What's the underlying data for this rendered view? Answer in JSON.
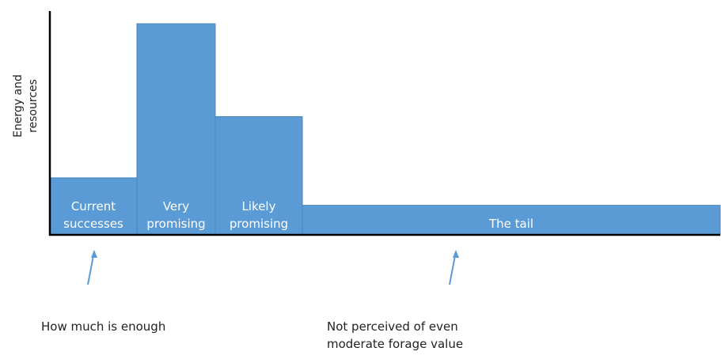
{
  "colors": {
    "bar_fill": "#5B9BD5",
    "bar_edge": "#4A85BC",
    "axis": "#000000",
    "bar_text": "#FFFFFF",
    "arrow": "#5B9BD5"
  },
  "chart_data": {
    "type": "bar",
    "ylabel": "Energy and resources",
    "ylabel_lines": [
      "Energy and",
      "resources"
    ],
    "bar_labels_shown": true,
    "categories": [
      "Current successes",
      "Very promising",
      "Likely promising",
      "The tail"
    ],
    "category_label_lines": [
      [
        "Current",
        "successes"
      ],
      [
        "Very",
        "promising"
      ],
      [
        "Likely",
        "promising"
      ],
      [
        "The tail"
      ]
    ],
    "relative_widths": [
      1,
      0.9,
      1,
      4.8
    ],
    "values": [
      27,
      100,
      56,
      14
    ],
    "ylim": [
      0,
      100
    ],
    "ticks_shown": false,
    "grid": false
  },
  "annotations": [
    {
      "text_lines": [
        "How much is enough"
      ],
      "points_to": "Current successes"
    },
    {
      "text_lines": [
        "Not perceived of even",
        "moderate forage value"
      ],
      "points_to": "The tail"
    }
  ]
}
